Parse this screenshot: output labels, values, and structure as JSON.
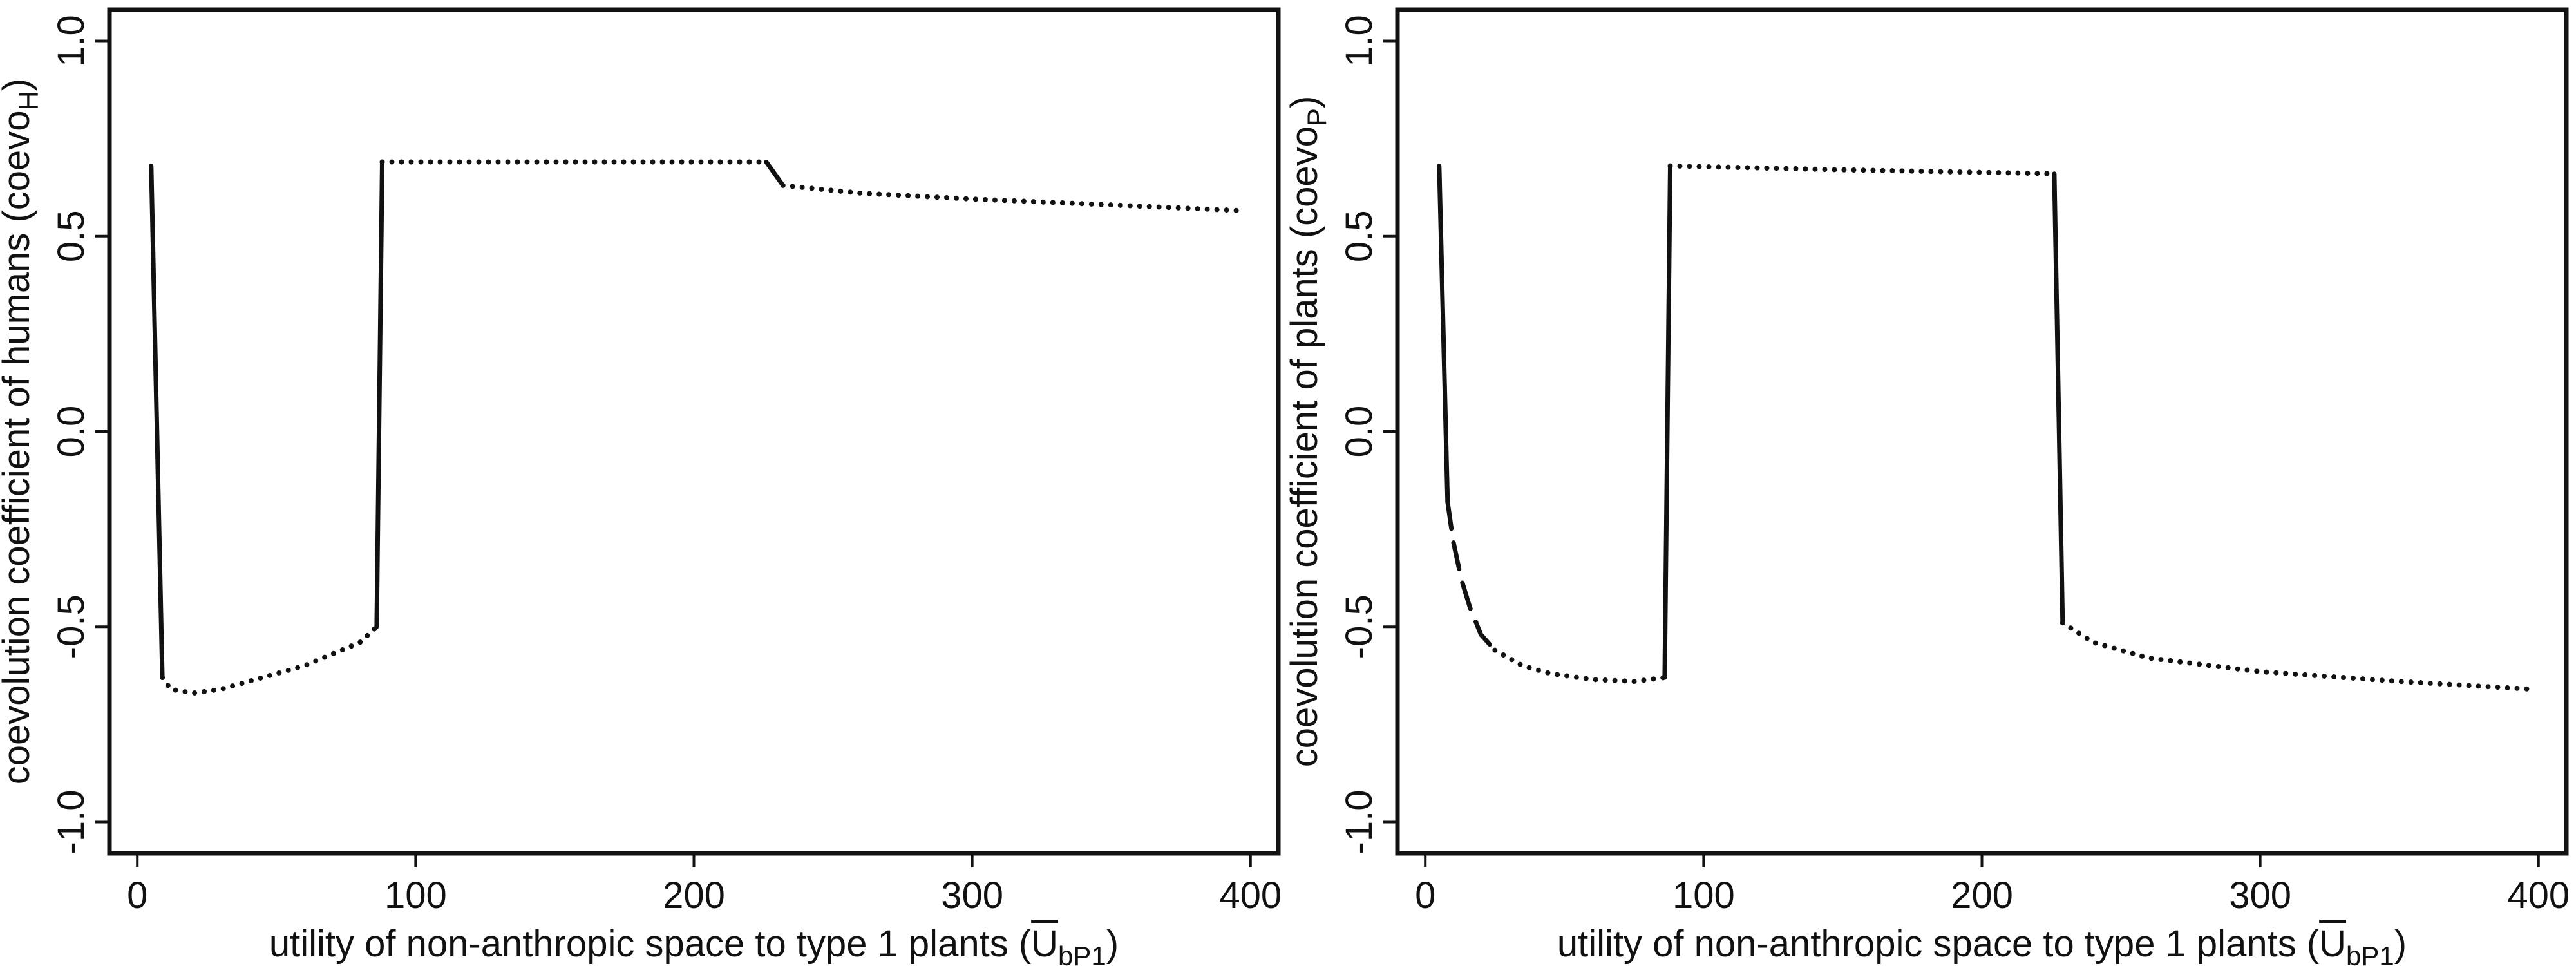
{
  "colors": {
    "ink": "#111111",
    "background": "#ffffff"
  },
  "chart_data": [
    {
      "type": "line",
      "xlabel": {
        "main": "utility of non-anthropic space to type 1 plants (",
        "sym": "U",
        "sub": "bP1",
        "close": ")"
      },
      "ylabel": {
        "main": "coevolution coefficient of humans (coevo",
        "sub": "H",
        "close": ")"
      },
      "xlim": [
        -10,
        410
      ],
      "ylim": [
        -1.08,
        1.08
      ],
      "x_ticks": [
        0,
        100,
        200,
        300,
        400
      ],
      "x_tick_labels": [
        "0",
        "100",
        "200",
        "300",
        "400"
      ],
      "y_ticks": [
        -1.0,
        -0.5,
        0.0,
        0.5,
        1.0
      ],
      "y_tick_labels": [
        "-1.0",
        "-0.5",
        "0.0",
        "0.5",
        "1.0"
      ],
      "grid": false,
      "series": [
        {
          "style": "solid",
          "points": [
            [
              5,
              0.68
            ],
            [
              9,
              -0.63
            ]
          ]
        },
        {
          "style": "dotted",
          "points": [
            [
              9,
              -0.63
            ],
            [
              12,
              -0.66
            ],
            [
              20,
              -0.67
            ],
            [
              30,
              -0.66
            ],
            [
              40,
              -0.64
            ],
            [
              50,
              -0.62
            ],
            [
              60,
              -0.6
            ],
            [
              70,
              -0.57
            ],
            [
              80,
              -0.54
            ],
            [
              86,
              -0.5
            ]
          ]
        },
        {
          "style": "solid",
          "points": [
            [
              86,
              -0.5
            ],
            [
              88,
              0.69
            ]
          ]
        },
        {
          "style": "dotted",
          "points": [
            [
              88,
              0.69
            ],
            [
              150,
              0.69
            ],
            [
              226,
              0.69
            ]
          ]
        },
        {
          "style": "dashed",
          "points": [
            [
              226,
              0.69
            ],
            [
              232,
              0.63
            ]
          ]
        },
        {
          "style": "dotted",
          "points": [
            [
              232,
              0.63
            ],
            [
              260,
              0.61
            ],
            [
              300,
              0.595
            ],
            [
              350,
              0.58
            ],
            [
              398,
              0.565
            ]
          ]
        }
      ]
    },
    {
      "type": "line",
      "xlabel": {
        "main": "utility of non-anthropic space to type 1 plants (",
        "sym": "U",
        "sub": "bP1",
        "close": ")"
      },
      "ylabel": {
        "main": "coevolution coefficient of plants (coevo",
        "sub": "P",
        "close": ")"
      },
      "xlim": [
        -10,
        410
      ],
      "ylim": [
        -1.08,
        1.08
      ],
      "x_ticks": [
        0,
        100,
        200,
        300,
        400
      ],
      "x_tick_labels": [
        "0",
        "100",
        "200",
        "300",
        "400"
      ],
      "y_ticks": [
        -1.0,
        -0.5,
        0.0,
        0.5,
        1.0
      ],
      "y_tick_labels": [
        "-1.0",
        "-0.5",
        "0.0",
        "0.5",
        "1.0"
      ],
      "grid": false,
      "series": [
        {
          "style": "solid",
          "points": [
            [
              5,
              0.68
            ],
            [
              8,
              -0.18
            ]
          ]
        },
        {
          "style": "dashed",
          "points": [
            [
              8,
              -0.18
            ],
            [
              10,
              -0.28
            ],
            [
              13,
              -0.38
            ],
            [
              16,
              -0.45
            ],
            [
              20,
              -0.52
            ],
            [
              25,
              -0.56
            ]
          ]
        },
        {
          "style": "dotted",
          "points": [
            [
              25,
              -0.56
            ],
            [
              35,
              -0.6
            ],
            [
              45,
              -0.62
            ],
            [
              60,
              -0.635
            ],
            [
              75,
              -0.64
            ],
            [
              86,
              -0.63
            ]
          ]
        },
        {
          "style": "solid",
          "points": [
            [
              86,
              -0.63
            ],
            [
              88,
              0.68
            ]
          ]
        },
        {
          "style": "dotted",
          "points": [
            [
              88,
              0.68
            ],
            [
              150,
              0.67
            ],
            [
              226,
              0.66
            ]
          ]
        },
        {
          "style": "solid",
          "points": [
            [
              226,
              0.66
            ],
            [
              229,
              -0.49
            ]
          ]
        },
        {
          "style": "dotted",
          "points": [
            [
              229,
              -0.49
            ],
            [
              240,
              -0.54
            ],
            [
              260,
              -0.58
            ],
            [
              300,
              -0.615
            ],
            [
              350,
              -0.64
            ],
            [
              398,
              -0.66
            ]
          ]
        }
      ]
    }
  ]
}
